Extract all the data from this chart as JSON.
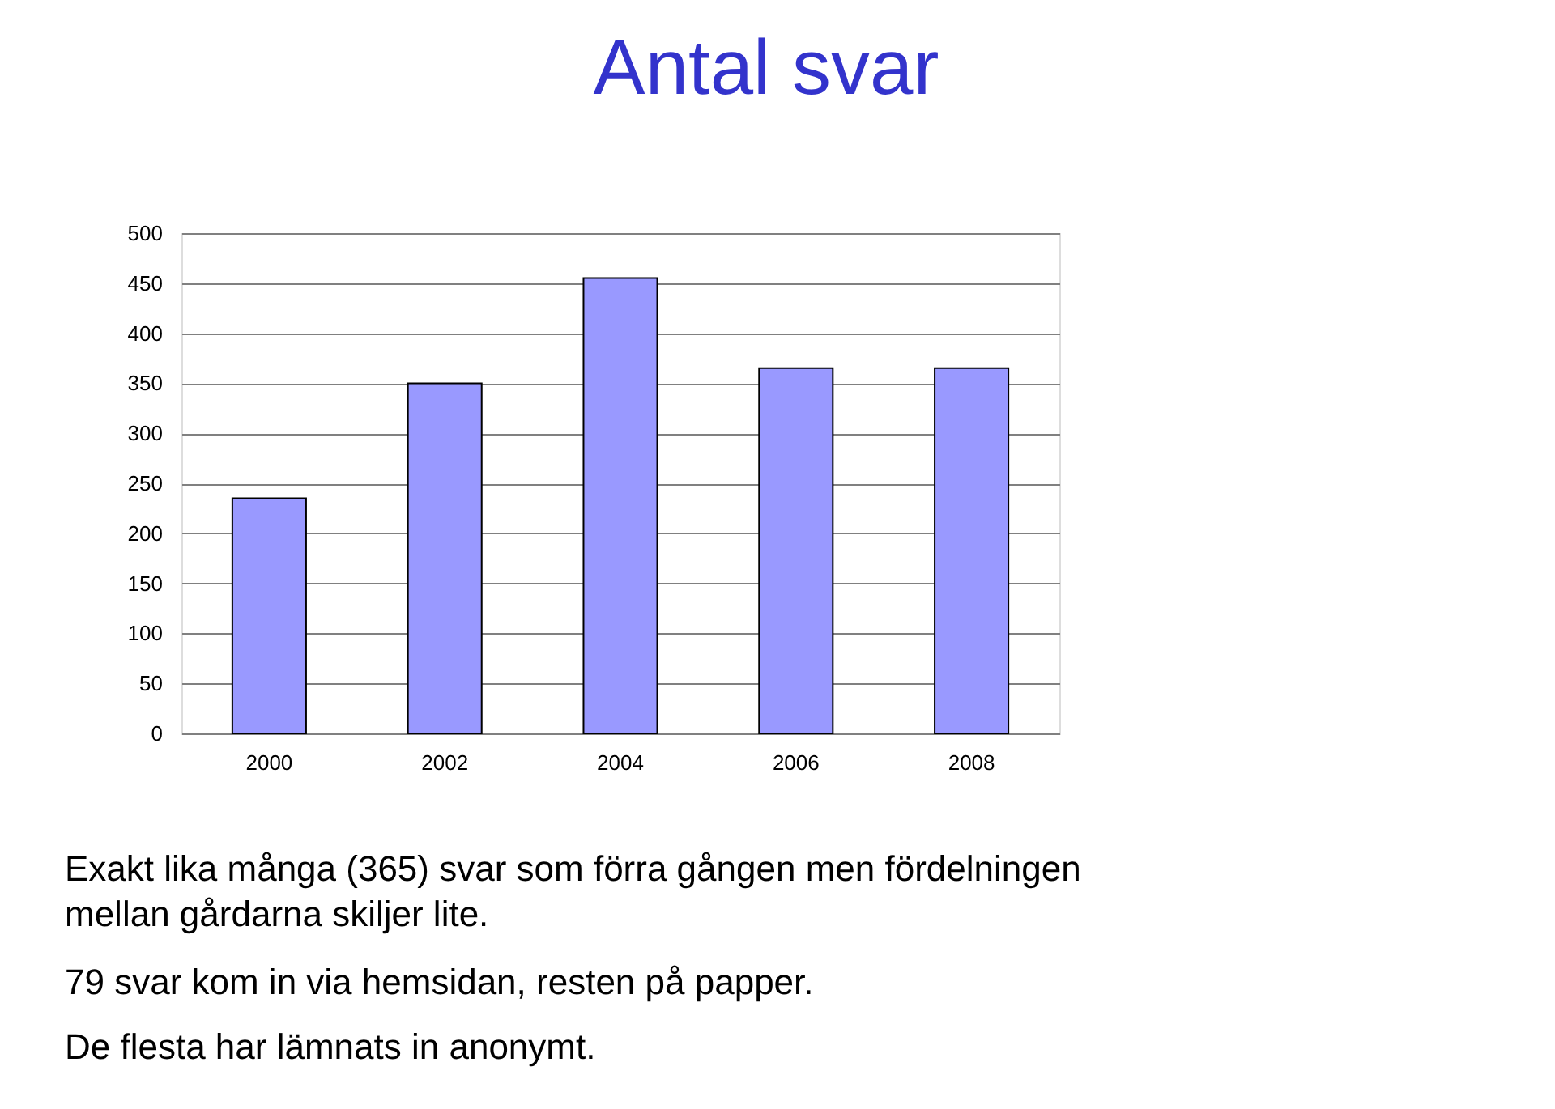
{
  "chart_data": {
    "type": "bar",
    "title": "Antal svar",
    "categories": [
      "2000",
      "2002",
      "2004",
      "2006",
      "2008"
    ],
    "values": [
      235,
      350,
      455,
      365,
      365
    ],
    "color": "#9999ff",
    "ylim": [
      0,
      500
    ],
    "yticks": [
      0,
      50,
      100,
      150,
      200,
      250,
      300,
      350,
      400,
      450,
      500
    ],
    "grid": "y",
    "annotations": [
      "Exakt lika många (365) svar som förra gången men fördelningen mellan gårdarna skiljer lite.",
      "79 svar kom in via hemsidan, resten på papper.",
      "De flesta har lämnats in anonymt."
    ]
  }
}
